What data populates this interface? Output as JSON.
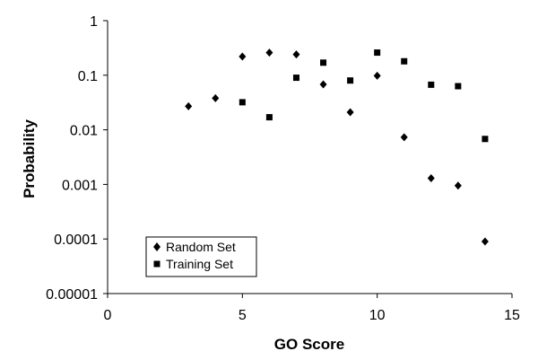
{
  "chart_data": {
    "type": "scatter",
    "title": "",
    "xlabel": "GO Score",
    "ylabel": "Probability",
    "xlim": [
      0,
      15
    ],
    "ylim": [
      1e-05,
      1
    ],
    "yscale": "log",
    "xticks": [
      0,
      5,
      10,
      15
    ],
    "xtick_labels": [
      "0",
      "5",
      "10",
      "15"
    ],
    "yticks": [
      1e-05,
      0.0001,
      0.001,
      0.01,
      0.1,
      1
    ],
    "ytick_labels": [
      "0.00001",
      "0.0001",
      "0.001",
      "0.01",
      "0.1",
      "1"
    ],
    "grid": false,
    "legend_position": "bottom-left",
    "series": [
      {
        "name": "Random Set",
        "marker": "diamond",
        "color": "#000000",
        "x": [
          3,
          4,
          5,
          6,
          7,
          8,
          9,
          10,
          11,
          12,
          13,
          14
        ],
        "y": [
          0.027,
          0.038,
          0.22,
          0.26,
          0.24,
          0.068,
          0.021,
          0.098,
          0.0073,
          0.0013,
          0.00095,
          9e-05
        ]
      },
      {
        "name": "Training Set",
        "marker": "square",
        "color": "#000000",
        "x": [
          5,
          6,
          7,
          8,
          9,
          10,
          11,
          12,
          13,
          14
        ],
        "y": [
          0.032,
          0.017,
          0.09,
          0.17,
          0.08,
          0.26,
          0.18,
          0.067,
          0.063,
          0.0068
        ]
      }
    ]
  }
}
